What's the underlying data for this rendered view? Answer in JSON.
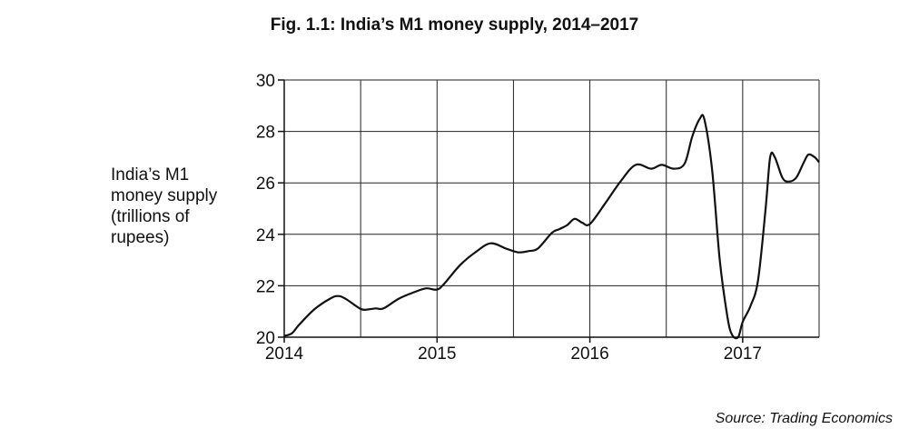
{
  "chart_data": {
    "type": "line",
    "title": "Fig. 1.1: India’s M1 money supply, 2014–2017",
    "ylabel_lines": [
      "India’s M1",
      "money supply",
      "(trillions of",
      "rupees)"
    ],
    "xlabel": "",
    "source": "Source: Trading Economics",
    "xlim": [
      2014,
      2017.5
    ],
    "ylim": [
      20,
      30
    ],
    "x_ticks": [
      2014,
      2015,
      2016,
      2017
    ],
    "x_tick_labels": [
      "2014",
      "2015",
      "2016",
      "2017"
    ],
    "y_ticks": [
      20,
      22,
      24,
      26,
      28,
      30
    ],
    "y_tick_labels": [
      "20",
      "22",
      "24",
      "26",
      "28",
      "30"
    ],
    "grid": true,
    "series": [
      {
        "color": "#111111",
        "points": [
          [
            2014.0,
            20.05
          ],
          [
            2014.05,
            20.15
          ],
          [
            2014.1,
            20.5
          ],
          [
            2014.2,
            21.1
          ],
          [
            2014.3,
            21.5
          ],
          [
            2014.35,
            21.6
          ],
          [
            2014.4,
            21.5
          ],
          [
            2014.5,
            21.1
          ],
          [
            2014.55,
            21.08
          ],
          [
            2014.6,
            21.12
          ],
          [
            2014.65,
            21.12
          ],
          [
            2014.75,
            21.5
          ],
          [
            2014.85,
            21.75
          ],
          [
            2014.93,
            21.9
          ],
          [
            2015.0,
            21.85
          ],
          [
            2015.05,
            22.1
          ],
          [
            2015.15,
            22.8
          ],
          [
            2015.25,
            23.3
          ],
          [
            2015.35,
            23.65
          ],
          [
            2015.45,
            23.45
          ],
          [
            2015.53,
            23.3
          ],
          [
            2015.6,
            23.35
          ],
          [
            2015.66,
            23.45
          ],
          [
            2015.75,
            24.05
          ],
          [
            2015.8,
            24.2
          ],
          [
            2015.85,
            24.35
          ],
          [
            2015.9,
            24.6
          ],
          [
            2015.95,
            24.45
          ],
          [
            2016.0,
            24.4
          ],
          [
            2016.1,
            25.2
          ],
          [
            2016.2,
            26.05
          ],
          [
            2016.3,
            26.7
          ],
          [
            2016.4,
            26.55
          ],
          [
            2016.47,
            26.7
          ],
          [
            2016.55,
            26.55
          ],
          [
            2016.62,
            26.75
          ],
          [
            2016.67,
            27.8
          ],
          [
            2016.72,
            28.5
          ],
          [
            2016.75,
            28.45
          ],
          [
            2016.8,
            26.5
          ],
          [
            2016.85,
            23.0
          ],
          [
            2016.9,
            20.8
          ],
          [
            2016.93,
            20.1
          ],
          [
            2016.97,
            20.0
          ],
          [
            2017.0,
            20.6
          ],
          [
            2017.05,
            21.2
          ],
          [
            2017.1,
            22.2
          ],
          [
            2017.15,
            25.0
          ],
          [
            2017.18,
            27.0
          ],
          [
            2017.21,
            27.0
          ],
          [
            2017.26,
            26.2
          ],
          [
            2017.3,
            26.05
          ],
          [
            2017.35,
            26.2
          ],
          [
            2017.4,
            26.8
          ],
          [
            2017.43,
            27.1
          ],
          [
            2017.47,
            27.0
          ],
          [
            2017.5,
            26.8
          ]
        ]
      }
    ]
  }
}
